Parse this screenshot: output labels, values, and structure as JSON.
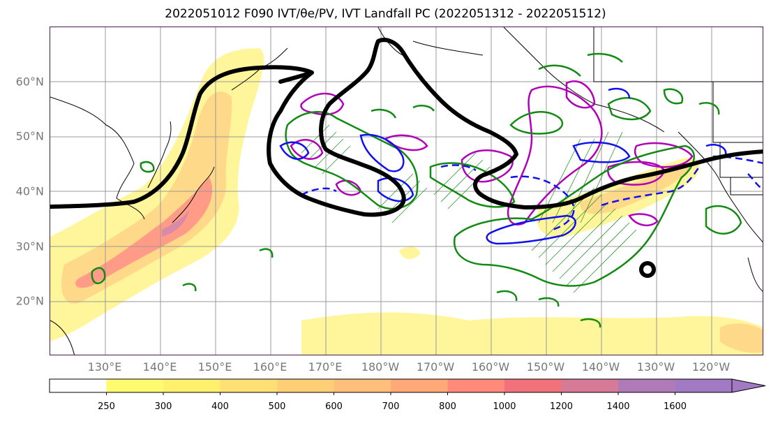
{
  "title": "2022051012 F090 IVT/θe/PV, IVT Landfall PC (2022051312 - 2022051512)",
  "map": {
    "lat_labels": [
      "60°N",
      "50°N",
      "40°N",
      "30°N",
      "20°N"
    ],
    "lon_labels": [
      "130°E",
      "140°E",
      "150°E",
      "160°E",
      "170°E",
      "180°W",
      "170°W",
      "160°W",
      "150°W",
      "140°W",
      "130°W",
      "120°W"
    ],
    "contour_colors": {
      "black": "#000000",
      "magenta": "#b100b8",
      "green": "#138a13",
      "blue": "#1010ee"
    }
  },
  "colorbar": {
    "labels": [
      "250",
      "300",
      "400",
      "500",
      "600",
      "700",
      "800",
      "1000",
      "1200",
      "1400",
      "1600"
    ],
    "colors": [
      "#ffffff",
      "#fffb70",
      "#fff06e",
      "#ffe075",
      "#ffcf78",
      "#ffbf7a",
      "#ffa878",
      "#ff8a7a",
      "#f2727c",
      "#d67a98",
      "#b07ab8",
      "#a27ac4"
    ],
    "extend": "max"
  }
}
